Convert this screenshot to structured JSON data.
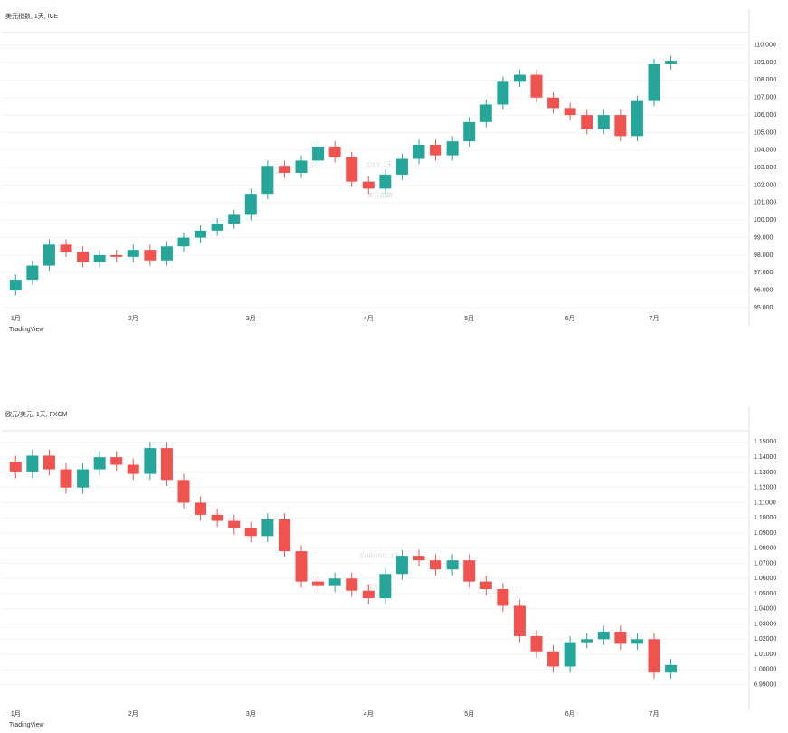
{
  "chart_data": [
    {
      "type": "candlestick",
      "title": "DXY, 1天",
      "subtitle": "美元指数",
      "header": "美元指数, 1天, ICE",
      "footer": "TradingView",
      "up_color": "#26a69a",
      "down_color": "#ef5350",
      "grid": true,
      "categories": [
        "1月",
        null,
        null,
        null,
        null,
        null,
        null,
        "2月",
        null,
        null,
        null,
        null,
        null,
        null,
        "3月",
        null,
        null,
        null,
        null,
        null,
        null,
        "4月",
        null,
        null,
        null,
        null,
        null,
        "5月",
        null,
        null,
        null,
        null,
        null,
        "6月",
        null,
        null,
        null,
        null,
        "7月",
        null
      ],
      "open": [
        96.0,
        96.6,
        97.4,
        98.6,
        98.2,
        97.6,
        98.0,
        97.9,
        98.3,
        97.7,
        98.5,
        99.0,
        99.4,
        99.8,
        100.3,
        101.5,
        103.1,
        102.7,
        103.4,
        104.2,
        103.6,
        102.2,
        101.8,
        102.6,
        103.5,
        104.3,
        103.7,
        104.5,
        105.6,
        106.6,
        107.9,
        108.3,
        107.0,
        106.4,
        106.0,
        105.2,
        106.0,
        104.8,
        106.8,
        108.9
      ],
      "high": [
        96.9,
        97.7,
        98.9,
        98.9,
        98.5,
        98.3,
        98.3,
        98.6,
        98.6,
        98.8,
        99.3,
        99.7,
        100.1,
        100.6,
        101.8,
        103.4,
        103.4,
        103.7,
        104.5,
        104.5,
        103.9,
        102.5,
        102.9,
        103.8,
        104.6,
        104.6,
        104.8,
        105.9,
        106.9,
        108.2,
        108.6,
        108.6,
        107.3,
        106.7,
        106.3,
        106.3,
        106.3,
        107.1,
        109.2,
        109.4
      ],
      "low": [
        95.7,
        96.3,
        97.1,
        97.9,
        97.3,
        97.3,
        97.6,
        97.6,
        97.4,
        97.4,
        98.2,
        98.7,
        99.1,
        99.5,
        100.0,
        101.2,
        102.4,
        102.4,
        103.1,
        103.3,
        101.9,
        101.5,
        101.5,
        102.3,
        103.2,
        103.4,
        103.4,
        104.2,
        105.3,
        106.3,
        107.6,
        106.7,
        106.1,
        105.7,
        104.9,
        104.9,
        104.5,
        104.5,
        106.5,
        108.6
      ],
      "close": [
        96.6,
        97.4,
        98.6,
        98.2,
        97.6,
        98.0,
        97.9,
        98.3,
        97.7,
        98.5,
        99.0,
        99.4,
        99.8,
        100.3,
        101.5,
        103.1,
        102.7,
        103.4,
        104.2,
        103.6,
        102.2,
        101.8,
        102.6,
        103.5,
        104.3,
        103.7,
        104.5,
        105.6,
        106.6,
        107.9,
        108.3,
        107.0,
        106.4,
        106.0,
        105.2,
        106.0,
        104.8,
        106.8,
        108.9,
        109.1
      ],
      "ylim": [
        95,
        110.5
      ],
      "yticks": [
        {
          "value": 95,
          "label": "95.000"
        },
        {
          "value": 96,
          "label": "96.000"
        },
        {
          "value": 97,
          "label": "97.000"
        },
        {
          "value": 98,
          "label": "98.000"
        },
        {
          "value": 99,
          "label": "99.000"
        },
        {
          "value": 100,
          "label": "100.000"
        },
        {
          "value": 101,
          "label": "101.000"
        },
        {
          "value": 102,
          "label": "102.000"
        },
        {
          "value": 103,
          "label": "103.000"
        },
        {
          "value": 104,
          "label": "104.000"
        },
        {
          "value": 105,
          "label": "105.000"
        },
        {
          "value": 106,
          "label": "106.000"
        },
        {
          "value": 107,
          "label": "107.000"
        },
        {
          "value": 108,
          "label": "108.000"
        },
        {
          "value": 109,
          "label": "109.000"
        },
        {
          "value": 110,
          "label": "110.000"
        }
      ]
    },
    {
      "type": "candlestick",
      "title": "EURUSD, 1天",
      "subtitle": "欧元/美元",
      "header": "欧元/美元, 1天, FXCM",
      "footer": "TradingView",
      "up_color": "#26a69a",
      "down_color": "#ef5350",
      "grid": true,
      "categories": [
        "1月",
        null,
        null,
        null,
        null,
        null,
        null,
        "2月",
        null,
        null,
        null,
        null,
        null,
        null,
        "3月",
        null,
        null,
        null,
        null,
        null,
        null,
        "4月",
        null,
        null,
        null,
        null,
        null,
        "5月",
        null,
        null,
        null,
        null,
        null,
        "6月",
        null,
        null,
        null,
        null,
        "7月",
        null
      ],
      "open": [
        1.137,
        1.13,
        1.141,
        1.132,
        1.12,
        1.132,
        1.14,
        1.135,
        1.129,
        1.146,
        1.125,
        1.11,
        1.102,
        1.098,
        1.093,
        1.088,
        1.099,
        1.078,
        1.058,
        1.055,
        1.06,
        1.052,
        1.047,
        1.063,
        1.075,
        1.072,
        1.066,
        1.072,
        1.058,
        1.053,
        1.042,
        1.022,
        1.012,
        1.002,
        1.018,
        1.02,
        1.025,
        1.017,
        1.02,
        0.998
      ],
      "high": [
        1.141,
        1.145,
        1.145,
        1.136,
        1.136,
        1.144,
        1.144,
        1.139,
        1.15,
        1.15,
        1.129,
        1.114,
        1.106,
        1.102,
        1.097,
        1.103,
        1.103,
        1.082,
        1.062,
        1.064,
        1.064,
        1.056,
        1.067,
        1.079,
        1.079,
        1.076,
        1.076,
        1.076,
        1.062,
        1.057,
        1.046,
        1.026,
        1.016,
        1.022,
        1.024,
        1.029,
        1.029,
        1.024,
        1.024,
        1.007
      ],
      "low": [
        1.126,
        1.126,
        1.128,
        1.116,
        1.116,
        1.128,
        1.131,
        1.125,
        1.125,
        1.121,
        1.106,
        1.098,
        1.094,
        1.089,
        1.084,
        1.084,
        1.074,
        1.054,
        1.051,
        1.051,
        1.048,
        1.043,
        1.043,
        1.059,
        1.068,
        1.062,
        1.062,
        1.054,
        1.049,
        1.038,
        1.018,
        1.008,
        0.998,
        0.998,
        1.014,
        1.016,
        1.013,
        1.013,
        0.994,
        0.994
      ],
      "close": [
        1.13,
        1.141,
        1.132,
        1.12,
        1.132,
        1.14,
        1.135,
        1.129,
        1.146,
        1.125,
        1.11,
        1.102,
        1.098,
        1.093,
        1.088,
        1.099,
        1.078,
        1.058,
        1.055,
        1.06,
        1.052,
        1.047,
        1.063,
        1.075,
        1.072,
        1.066,
        1.072,
        1.058,
        1.053,
        1.042,
        1.022,
        1.012,
        1.002,
        1.018,
        1.02,
        1.025,
        1.017,
        1.02,
        0.998,
        1.003
      ],
      "ylim": [
        0.985,
        1.155
      ],
      "yticks": [
        {
          "value": 0.99,
          "label": "0.99000"
        },
        {
          "value": 1.0,
          "label": "1.00000"
        },
        {
          "value": 1.01,
          "label": "1.01000"
        },
        {
          "value": 1.02,
          "label": "1.02000"
        },
        {
          "value": 1.03,
          "label": "1.03000"
        },
        {
          "value": 1.04,
          "label": "1.04000"
        },
        {
          "value": 1.05,
          "label": "1.05000"
        },
        {
          "value": 1.06,
          "label": "1.06000"
        },
        {
          "value": 1.07,
          "label": "1.07000"
        },
        {
          "value": 1.08,
          "label": "1.08000"
        },
        {
          "value": 1.09,
          "label": "1.09000"
        },
        {
          "value": 1.1,
          "label": "1.10000"
        },
        {
          "value": 1.11,
          "label": "1.11000"
        },
        {
          "value": 1.12,
          "label": "1.12000"
        },
        {
          "value": 1.13,
          "label": "1.13000"
        },
        {
          "value": 1.14,
          "label": "1.14000"
        },
        {
          "value": 1.15,
          "label": "1.15000"
        }
      ]
    }
  ]
}
